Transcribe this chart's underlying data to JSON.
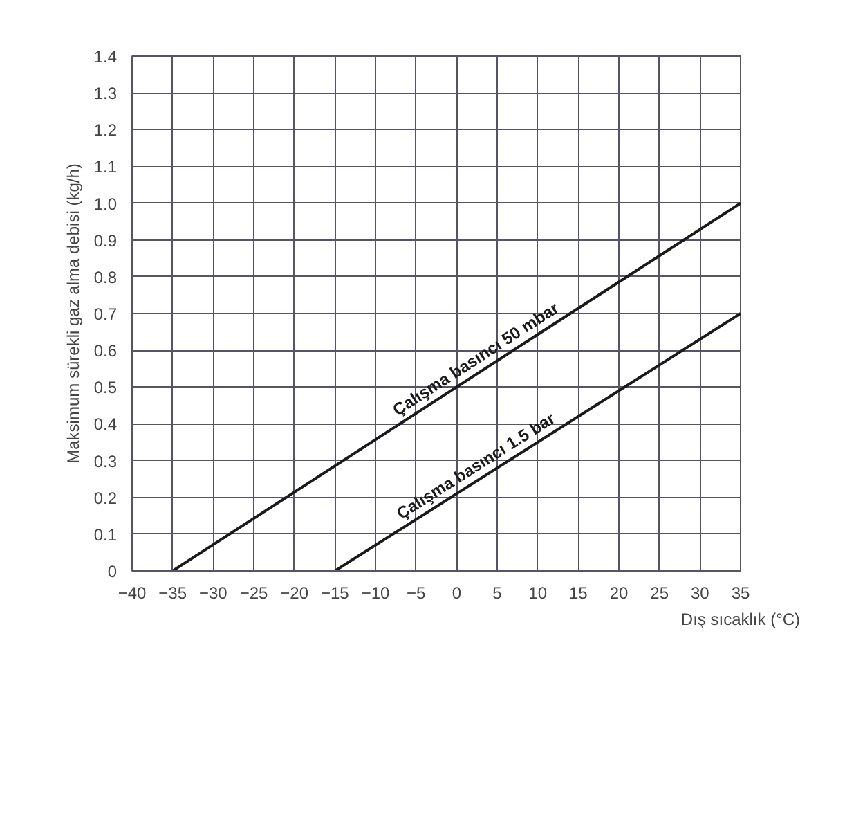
{
  "chart_data": {
    "type": "line",
    "xlabel": "Dış sıcaklık (°C)",
    "ylabel": "Maksimum sürekli gaz alma debisi (kg/h)",
    "xlim": [
      -40,
      35
    ],
    "xticks": [
      -40,
      -35,
      -30,
      -25,
      -20,
      -15,
      -10,
      -5,
      0,
      5,
      10,
      15,
      20,
      25,
      30,
      35
    ],
    "ylim": [
      0,
      1.4
    ],
    "yticks": [
      0,
      {
        "value": 0.1,
        "label": "0.1"
      },
      {
        "value": 0.2,
        "label": "0.2"
      },
      {
        "value": 0.3,
        "label": "0.3"
      },
      {
        "value": 0.4,
        "label": "0.4"
      },
      {
        "value": 0.5,
        "label": "0.5"
      },
      {
        "value": 0.6,
        "label": "0.6"
      },
      {
        "value": 0.7,
        "label": "0.7"
      },
      {
        "value": 0.8,
        "label": "0.8"
      },
      {
        "value": 0.9,
        "label": "0.9"
      },
      {
        "value": 1.0,
        "label": "1.0"
      },
      {
        "value": 1.1,
        "label": "1.1"
      },
      {
        "value": 1.2,
        "label": "1.2"
      },
      {
        "value": 1.3,
        "label": "1.3"
      },
      {
        "value": 1.4,
        "label": "1.4"
      }
    ],
    "grid": true,
    "line_style": "solid",
    "series": [
      {
        "color": "#1a1a1a",
        "x": [
          -35,
          35
        ],
        "values": [
          0,
          1.0
        ]
      },
      {
        "color": "#1a1a1a",
        "x": [
          -15,
          35
        ],
        "values": [
          0,
          0.7
        ]
      }
    ],
    "annotations": [
      {
        "text": "Çalışma basıncı 50 mbar",
        "x": 3,
        "y": 0.543
      },
      {
        "text": "Çalışma basıncı 1.5 bar",
        "x": 3,
        "y": 0.252
      }
    ]
  }
}
